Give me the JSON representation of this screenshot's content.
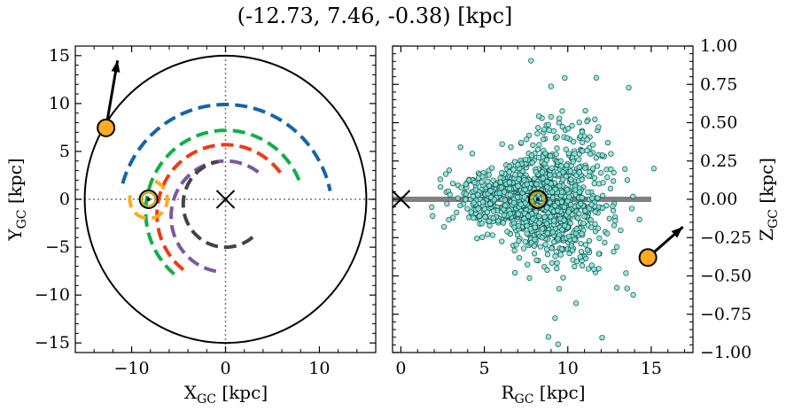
{
  "title": "(-12.73, 7.46, -0.38) [kpc]",
  "colors": {
    "blue": "#1565a8",
    "green": "#10b048",
    "red": "#f03a12",
    "purple": "#7f56a0",
    "dark": "#444444",
    "orange": "#ffaa1f",
    "gold_ring": "#c8a400",
    "scatter_fill": "#7fe8d8",
    "scatter_edge": "#1a4a4a"
  },
  "chart_data": [
    {
      "type": "line",
      "name": "xy-plane",
      "xlabel": "X",
      "xlabel_sub": "GC",
      "xlabel_unit": " [kpc]",
      "ylabel": "Y",
      "ylabel_sub": "GC",
      "ylabel_unit": " [kpc]",
      "xlim": [
        -16,
        16
      ],
      "ylim": [
        -16,
        16
      ],
      "xticks": [
        -10,
        0,
        10
      ],
      "xtick_labels": [
        "−10",
        "0",
        "10"
      ],
      "yticks": [
        -15,
        -10,
        -5,
        0,
        5,
        10,
        15
      ],
      "ytick_labels": [
        "−15",
        "−10",
        "−5",
        "0",
        "5",
        "10",
        "15"
      ],
      "boundary_circle_radius": 15,
      "galactic_center": [
        0,
        0
      ],
      "sun_position": [
        -8.2,
        0
      ],
      "object_position": [
        -12.73,
        7.46
      ],
      "velocity_arrow_tip": [
        -11.5,
        14.5
      ],
      "arm_arcs": [
        {
          "name": "blue",
          "center": [
            0,
            0
          ],
          "radius": 11.4,
          "theta_start_deg": 164,
          "theta_end_deg": 12,
          "y_offset": -1.5
        },
        {
          "name": "green-outer",
          "center": [
            0,
            0
          ],
          "radius": 8.5,
          "theta_start_deg": 230,
          "theta_end_deg": 20,
          "y_offset": -1.3
        },
        {
          "name": "red",
          "center": [
            0,
            0
          ],
          "radius": 7.3,
          "theta_start_deg": 232,
          "theta_end_deg": 32,
          "y_offset": -1.6
        },
        {
          "name": "purple",
          "center": [
            0,
            0
          ],
          "radius": 5.8,
          "theta_start_deg": 260,
          "theta_end_deg": 50,
          "y_offset": -1.8
        },
        {
          "name": "dark",
          "center": [
            0,
            0
          ],
          "radius": 4.5,
          "theta_start_deg": 310,
          "theta_end_deg": 100,
          "y_offset": -0.5
        },
        {
          "name": "orange",
          "center": [
            -8.2,
            0
          ],
          "radius": 2.0,
          "theta_start_deg": 70,
          "theta_end_deg": 160,
          "y_offset": 0
        }
      ]
    },
    {
      "type": "scatter",
      "name": "rz-plane",
      "xlabel": "R",
      "xlabel_sub": "GC",
      "xlabel_unit": " [kpc]",
      "ylabel": "Z",
      "ylabel_sub": "GC",
      "ylabel_unit": " [kpc]",
      "xlim": [
        -0.5,
        17.5
      ],
      "ylim": [
        -1.0,
        1.0
      ],
      "xticks": [
        0,
        5,
        10,
        15
      ],
      "xtick_labels": [
        "0",
        "5",
        "10",
        "15"
      ],
      "yticks": [
        -1.0,
        -0.75,
        -0.5,
        -0.25,
        0.0,
        0.25,
        0.5,
        0.75,
        1.0
      ],
      "ytick_labels": [
        "−1.00",
        "−0.75",
        "−0.50",
        "−0.25",
        "0.00",
        "0.25",
        "0.50",
        "0.75",
        "1.00"
      ],
      "disk_line": {
        "x": [
          -0.5,
          15
        ],
        "y": 0
      },
      "galactic_center": [
        0,
        0
      ],
      "sun_position": [
        8.2,
        0
      ],
      "object_position": [
        14.8,
        -0.38
      ],
      "velocity_arrow_tip": [
        16.9,
        -0.18
      ],
      "cloud": {
        "n_points": 1200,
        "center_r": 8.3,
        "spread_r": 2.1,
        "spread_z": 0.17,
        "r_min": 1.5,
        "r_max": 15.2
      }
    }
  ]
}
